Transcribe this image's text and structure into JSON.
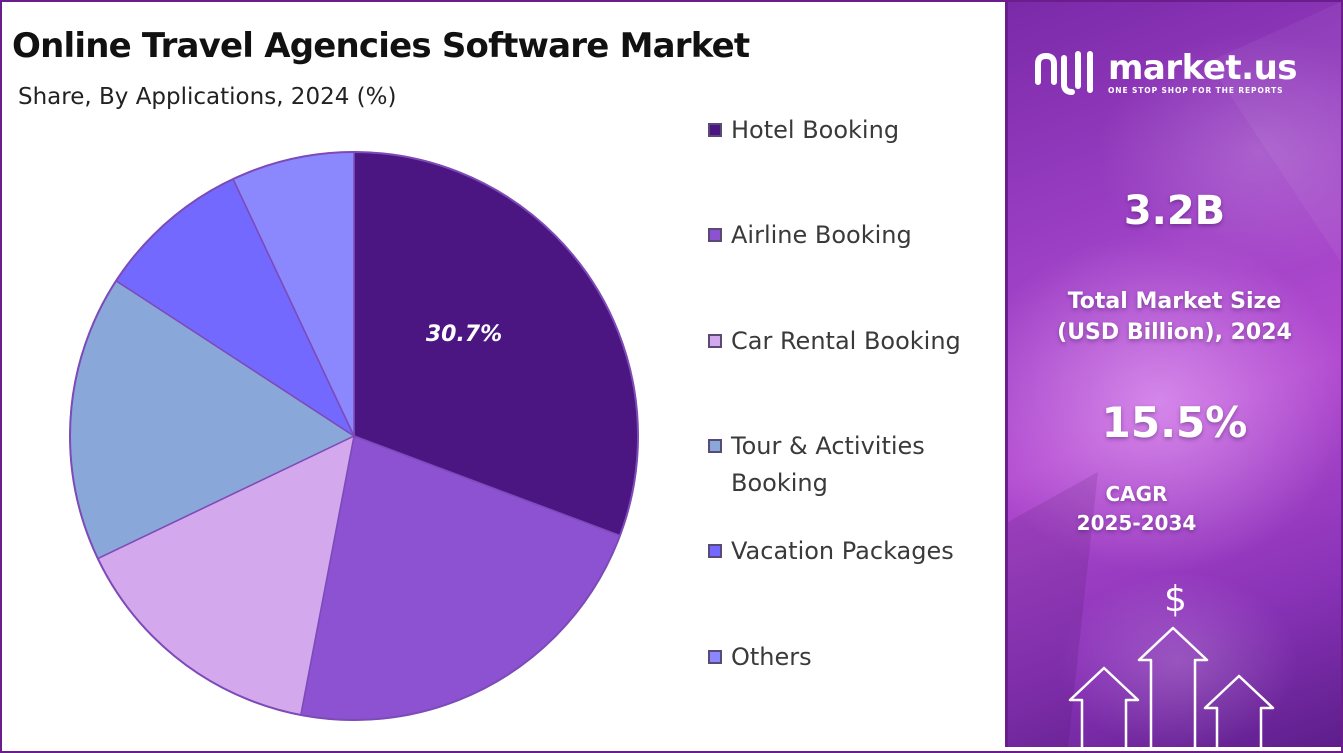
{
  "title": "Online Travel Agencies Software Market",
  "subtitle": "Share, By Applications, 2024 (%)",
  "chart_data": {
    "type": "pie",
    "categories": [
      "Hotel Booking",
      "Airline Booking",
      "Car Rental Booking",
      "Tour & Activities Booking",
      "Vacation Packages",
      "Others"
    ],
    "values": [
      30.7,
      22.3,
      14.9,
      16.3,
      8.8,
      7.0
    ],
    "labels_shown": [
      "30.7%",
      "",
      "",
      "",
      "",
      ""
    ],
    "colors": [
      "#4b1582",
      "#8c52d2",
      "#d4a8ec",
      "#8aa7da",
      "#7369fe",
      "#8b87fd"
    ],
    "legend_position": "right",
    "start_angle_deg": 0,
    "direction": "clockwise"
  },
  "legend": {
    "items": [
      {
        "label": "Hotel Booking",
        "lines": [
          "Hotel Booking"
        ]
      },
      {
        "label": "Airline Booking",
        "lines": [
          "Airline Booking"
        ]
      },
      {
        "label": "Car Rental Booking",
        "lines": [
          "Car Rental Booking"
        ]
      },
      {
        "label": "Tour & Activities Booking",
        "lines": [
          "Tour & Activities",
          "Booking"
        ]
      },
      {
        "label": "Vacation Packages",
        "lines": [
          "Vacation Packages"
        ]
      },
      {
        "label": "Others",
        "lines": [
          "Others"
        ]
      }
    ]
  },
  "sidebar": {
    "logo_name": "market.us",
    "logo_tagline": "ONE STOP SHOP FOR THE REPORTS",
    "market_size_value": "3.2B",
    "market_size_label_line1": "Total Market Size",
    "market_size_label_line2": "(USD Billion), 2024",
    "cagr_value": "15.5%",
    "cagr_label_line1": "CAGR",
    "cagr_label_line2": "2025-2034",
    "dollar_symbol": "$",
    "icons": [
      "market-us-logo-icon",
      "up-arrow-icon",
      "dollar-icon"
    ],
    "accent_color": "#6b1d8e"
  }
}
